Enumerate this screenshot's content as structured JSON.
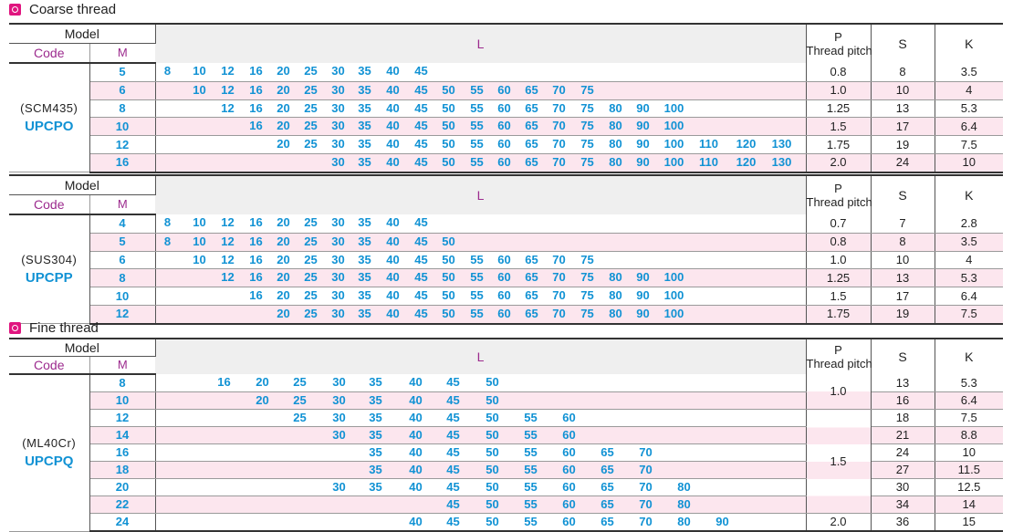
{
  "sections": [
    {
      "title": "Coarse thread",
      "header": {
        "model": "Model",
        "code": "Code",
        "m": "M",
        "l": "L",
        "p": "P",
        "pitch": "Thread pitch",
        "s": "S",
        "k": "K"
      },
      "material": "(SCM435)",
      "code": "UPCPO",
      "rows": [
        {
          "m": "5",
          "l": [
            "8",
            "10",
            "12",
            "16",
            "20",
            "25",
            "30",
            "35",
            "40",
            "45"
          ],
          "p": "0.8",
          "s": "8",
          "k": "3.5"
        },
        {
          "m": "6",
          "l": [
            "10",
            "12",
            "16",
            "20",
            "25",
            "30",
            "35",
            "40",
            "45",
            "50",
            "55",
            "60",
            "65",
            "70",
            "75"
          ],
          "p": "1.0",
          "s": "10",
          "k": "4"
        },
        {
          "m": "8",
          "l": [
            "12",
            "16",
            "20",
            "25",
            "30",
            "35",
            "40",
            "45",
            "50",
            "55",
            "60",
            "65",
            "70",
            "75",
            "80",
            "90",
            "100"
          ],
          "p": "1.25",
          "s": "13",
          "k": "5.3"
        },
        {
          "m": "10",
          "l": [
            "16",
            "20",
            "25",
            "30",
            "35",
            "40",
            "45",
            "50",
            "55",
            "60",
            "65",
            "70",
            "75",
            "80",
            "90",
            "100"
          ],
          "p": "1.5",
          "s": "17",
          "k": "6.4"
        },
        {
          "m": "12",
          "l": [
            "20",
            "25",
            "30",
            "35",
            "40",
            "45",
            "50",
            "55",
            "60",
            "65",
            "70",
            "75",
            "80",
            "90",
            "100",
            "110",
            "120",
            "130"
          ],
          "p": "1.75",
          "s": "19",
          "k": "7.5"
        },
        {
          "m": "16",
          "l": [
            "30",
            "35",
            "40",
            "45",
            "50",
            "55",
            "60",
            "65",
            "70",
            "75",
            "80",
            "90",
            "100",
            "110",
            "120",
            "130"
          ],
          "p": "2.0",
          "s": "24",
          "k": "10"
        }
      ]
    },
    {
      "title": "",
      "header": {
        "model": "Model",
        "code": "Code",
        "m": "M",
        "l": "L",
        "p": "P",
        "pitch": "Thread pitch",
        "s": "S",
        "k": "K"
      },
      "material": "(SUS304)",
      "code": "UPCPP",
      "rows": [
        {
          "m": "4",
          "l": [
            "8",
            "10",
            "12",
            "16",
            "20",
            "25",
            "30",
            "35",
            "40",
            "45"
          ],
          "p": "0.7",
          "s": "7",
          "k": "2.8"
        },
        {
          "m": "5",
          "l": [
            "8",
            "10",
            "12",
            "16",
            "20",
            "25",
            "30",
            "35",
            "40",
            "45",
            "50"
          ],
          "p": "0.8",
          "s": "8",
          "k": "3.5"
        },
        {
          "m": "6",
          "l": [
            "10",
            "12",
            "16",
            "20",
            "25",
            "30",
            "35",
            "40",
            "45",
            "50",
            "55",
            "60",
            "65",
            "70",
            "75"
          ],
          "p": "1.0",
          "s": "10",
          "k": "4"
        },
        {
          "m": "8",
          "l": [
            "12",
            "16",
            "20",
            "25",
            "30",
            "35",
            "40",
            "45",
            "50",
            "55",
            "60",
            "65",
            "70",
            "75",
            "80",
            "90",
            "100"
          ],
          "p": "1.25",
          "s": "13",
          "k": "5.3"
        },
        {
          "m": "10",
          "l": [
            "16",
            "20",
            "25",
            "30",
            "35",
            "40",
            "45",
            "50",
            "55",
            "60",
            "65",
            "70",
            "75",
            "80",
            "90",
            "100"
          ],
          "p": "1.5",
          "s": "17",
          "k": "6.4"
        },
        {
          "m": "12",
          "l": [
            "20",
            "25",
            "30",
            "35",
            "40",
            "45",
            "50",
            "55",
            "60",
            "65",
            "70",
            "75",
            "80",
            "90",
            "100"
          ],
          "p": "1.75",
          "s": "19",
          "k": "7.5"
        }
      ]
    },
    {
      "title": "Fine thread",
      "header": {
        "model": "Model",
        "code": "Code",
        "m": "M",
        "l": "L",
        "p": "P",
        "pitch": "Thread pitch",
        "s": "S",
        "k": "K"
      },
      "material": "(ML40Cr)",
      "code": "UPCPQ",
      "rows": [
        {
          "m": "8",
          "l": [
            "16",
            "20",
            "25",
            "30",
            "35",
            "40",
            "45",
            "50"
          ],
          "s": "13",
          "k": "5.3"
        },
        {
          "m": "10",
          "l": [
            "20",
            "25",
            "30",
            "35",
            "40",
            "45",
            "50"
          ],
          "s": "16",
          "k": "6.4"
        },
        {
          "m": "12",
          "l": [
            "25",
            "30",
            "35",
            "40",
            "45",
            "50",
            "55",
            "60"
          ],
          "s": "18",
          "k": "7.5"
        },
        {
          "m": "14",
          "l": [
            "30",
            "35",
            "40",
            "45",
            "50",
            "55",
            "60"
          ],
          "s": "21",
          "k": "8.8"
        },
        {
          "m": "16",
          "l": [
            "35",
            "40",
            "45",
            "50",
            "55",
            "60",
            "65",
            "70"
          ],
          "s": "24",
          "k": "10"
        },
        {
          "m": "18",
          "l": [
            "35",
            "40",
            "45",
            "50",
            "55",
            "60",
            "65",
            "70"
          ],
          "s": "27",
          "k": "11.5"
        },
        {
          "m": "20",
          "l": [
            "30",
            "35",
            "40",
            "45",
            "50",
            "55",
            "60",
            "65",
            "70",
            "80"
          ],
          "s": "30",
          "k": "12.5"
        },
        {
          "m": "22",
          "l": [
            "45",
            "50",
            "55",
            "60",
            "65",
            "70",
            "80"
          ],
          "s": "34",
          "k": "14"
        },
        {
          "m": "24",
          "l": [
            "40",
            "45",
            "50",
            "55",
            "60",
            "65",
            "70",
            "80",
            "90"
          ],
          "s": "36",
          "k": "15"
        }
      ],
      "pitch_groups": [
        {
          "label": "1.0",
          "rows": 2
        },
        {
          "label": "1.5",
          "rows": 6
        },
        {
          "label": "2.0",
          "rows": 1
        }
      ]
    }
  ]
}
